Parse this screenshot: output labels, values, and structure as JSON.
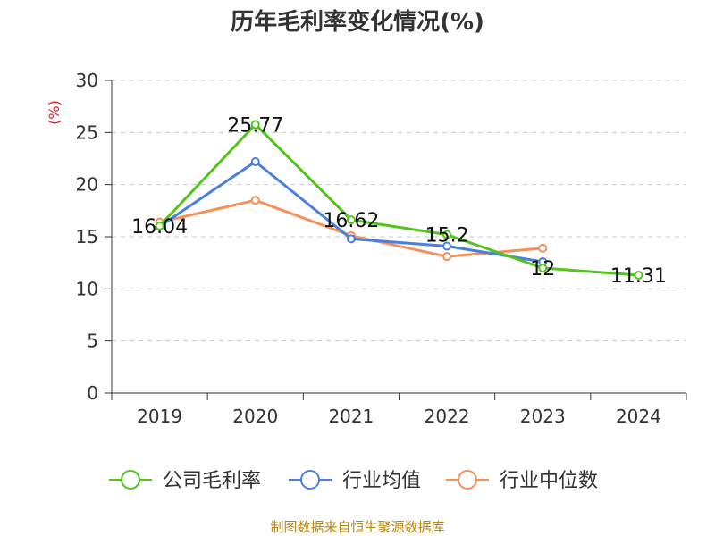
{
  "chart_data": {
    "type": "line",
    "title": "历年毛利率变化情况(%)",
    "unit_label": "(%)",
    "categories": [
      "2019",
      "2020",
      "2021",
      "2022",
      "2023",
      "2024"
    ],
    "ylim": [
      0,
      30
    ],
    "yticks": [
      0,
      5,
      10,
      15,
      20,
      25,
      30
    ],
    "grid": true,
    "legend_position": "bottom",
    "series": [
      {
        "name": "公司毛利率",
        "color": "#52c41a",
        "values": [
          16.04,
          25.77,
          16.62,
          15.2,
          12,
          11.31
        ],
        "data_labels": [
          "16.04",
          "25.77",
          "16.62",
          "15.2",
          "12",
          "11.31"
        ]
      },
      {
        "name": "行业均值",
        "color": "#4a7fe0",
        "values": [
          16.0,
          22.2,
          14.8,
          14.1,
          12.6,
          null
        ]
      },
      {
        "name": "行业中位数",
        "color": "#f4915a",
        "values": [
          16.4,
          18.5,
          15.1,
          13.1,
          13.9,
          null
        ]
      }
    ],
    "source": "制图数据来自恒生聚源数据库"
  }
}
